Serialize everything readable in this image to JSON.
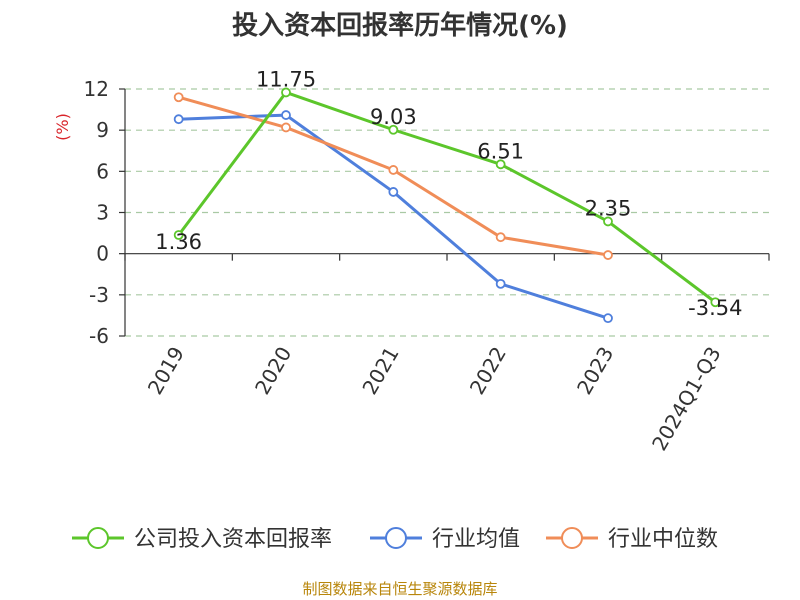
{
  "chart_data": {
    "type": "line",
    "title": "投入资本回报率历年情况(%)",
    "ylabel": "(%)",
    "categories": [
      "2019",
      "2020",
      "2021",
      "2022",
      "2023",
      "2024Q1-Q3"
    ],
    "yticks": [
      12,
      9,
      6,
      3,
      0,
      -3,
      -6
    ],
    "ylim": [
      -6,
      12
    ],
    "grid": true,
    "legend_position": "bottom",
    "series": [
      {
        "name": "公司投入资本回报率",
        "color": "#5cc62b",
        "values": [
          1.36,
          11.75,
          9.03,
          6.51,
          2.35,
          -3.54
        ],
        "labels": [
          "1.36",
          "11.75",
          "9.03",
          "6.51",
          "2.35",
          "-3.54"
        ]
      },
      {
        "name": "行业均值",
        "color": "#4f7fdc",
        "values": [
          9.8,
          10.1,
          4.5,
          -2.2,
          -4.7,
          null
        ]
      },
      {
        "name": "行业中位数",
        "color": "#f08d58",
        "values": [
          11.4,
          9.2,
          6.1,
          1.2,
          -0.1,
          null
        ]
      }
    ]
  },
  "source": "制图数据来自恒生聚源数据库"
}
